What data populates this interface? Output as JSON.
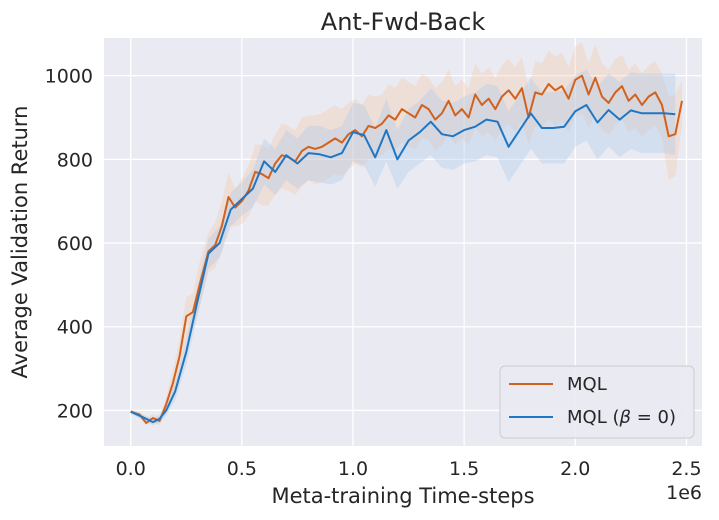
{
  "chart_data": {
    "type": "line",
    "title": "Ant-Fwd-Back",
    "xlabel": "Meta-training Time-steps",
    "ylabel": "Average Validation Return",
    "x_scale_label": "1e6",
    "xlim": [
      -0.12,
      2.57
    ],
    "ylim": [
      115,
      1090
    ],
    "xticks": [
      0.0,
      0.5,
      1.0,
      1.5,
      2.0,
      2.5
    ],
    "xtick_labels": [
      "0.0",
      "0.5",
      "1.0",
      "1.5",
      "2.0",
      "2.5"
    ],
    "yticks": [
      200,
      400,
      600,
      800,
      1000
    ],
    "ytick_labels": [
      "200",
      "400",
      "600",
      "800",
      "1000"
    ],
    "grid": true,
    "legend_position": "lower-right",
    "series": [
      {
        "name": "MQL",
        "legend_label": "MQL",
        "color": "#d2611c",
        "band_color": "#f6c8a8",
        "x": [
          0.0,
          0.04,
          0.07,
          0.1,
          0.13,
          0.16,
          0.19,
          0.22,
          0.25,
          0.28,
          0.31,
          0.35,
          0.38,
          0.41,
          0.44,
          0.47,
          0.5,
          0.53,
          0.56,
          0.59,
          0.62,
          0.65,
          0.68,
          0.71,
          0.74,
          0.77,
          0.8,
          0.83,
          0.86,
          0.89,
          0.92,
          0.95,
          0.98,
          1.01,
          1.04,
          1.07,
          1.1,
          1.13,
          1.16,
          1.19,
          1.22,
          1.25,
          1.28,
          1.31,
          1.34,
          1.37,
          1.4,
          1.43,
          1.46,
          1.49,
          1.52,
          1.55,
          1.58,
          1.61,
          1.64,
          1.67,
          1.7,
          1.73,
          1.76,
          1.79,
          1.82,
          1.85,
          1.88,
          1.91,
          1.94,
          1.97,
          2.0,
          2.03,
          2.06,
          2.09,
          2.12,
          2.15,
          2.18,
          2.21,
          2.24,
          2.27,
          2.3,
          2.33,
          2.36,
          2.39,
          2.42,
          2.45,
          2.48
        ],
        "values": [
          197,
          190,
          170,
          182,
          175,
          215,
          265,
          330,
          425,
          435,
          500,
          580,
          595,
          640,
          710,
          685,
          700,
          725,
          770,
          765,
          755,
          790,
          810,
          805,
          795,
          820,
          830,
          825,
          830,
          840,
          850,
          840,
          860,
          870,
          855,
          880,
          875,
          885,
          905,
          895,
          920,
          910,
          900,
          930,
          920,
          895,
          910,
          940,
          905,
          920,
          900,
          955,
          930,
          945,
          920,
          950,
          965,
          945,
          970,
          900,
          960,
          955,
          980,
          965,
          975,
          945,
          990,
          1000,
          955,
          995,
          950,
          935,
          960,
          975,
          940,
          955,
          930,
          950,
          960,
          930,
          855,
          860,
          940
        ],
        "lower": [
          192,
          182,
          165,
          170,
          165,
          195,
          235,
          290,
          370,
          390,
          445,
          530,
          540,
          580,
          640,
          640,
          645,
          665,
          700,
          690,
          690,
          715,
          730,
          725,
          715,
          735,
          750,
          740,
          745,
          755,
          765,
          760,
          775,
          790,
          780,
          800,
          800,
          810,
          825,
          820,
          840,
          830,
          825,
          850,
          845,
          820,
          835,
          860,
          835,
          850,
          835,
          875,
          855,
          865,
          845,
          870,
          885,
          865,
          890,
          835,
          880,
          875,
          895,
          880,
          890,
          865,
          905,
          910,
          875,
          905,
          870,
          860,
          880,
          895,
          865,
          875,
          855,
          870,
          880,
          850,
          750,
          760,
          880
        ],
        "upper": [
          202,
          197,
          180,
          192,
          185,
          232,
          295,
          370,
          470,
          480,
          555,
          625,
          650,
          700,
          770,
          730,
          755,
          785,
          835,
          835,
          825,
          860,
          885,
          880,
          870,
          900,
          905,
          905,
          910,
          920,
          930,
          920,
          935,
          945,
          930,
          955,
          950,
          955,
          980,
          970,
          995,
          985,
          975,
          1005,
          995,
          970,
          985,
          1015,
          975,
          990,
          970,
          1030,
          1005,
          1020,
          995,
          1025,
          1040,
          1020,
          1045,
          970,
          1035,
          1030,
          1060,
          1045,
          1055,
          1020,
          1070,
          1080,
          1030,
          1075,
          1030,
          1015,
          1040,
          1050,
          1015,
          1030,
          1005,
          1025,
          1035,
          1005,
          950,
          955,
          990
        ]
      },
      {
        "name": "MQL (beta=0)",
        "legend_label": "MQL (",
        "legend_beta": "β",
        "legend_suffix": " = 0)",
        "color": "#1f77c4",
        "band_color": "#a9c8eb",
        "x": [
          0.0,
          0.05,
          0.1,
          0.13,
          0.16,
          0.2,
          0.25,
          0.3,
          0.35,
          0.4,
          0.45,
          0.5,
          0.55,
          0.6,
          0.65,
          0.7,
          0.75,
          0.8,
          0.85,
          0.9,
          0.95,
          1.0,
          1.05,
          1.1,
          1.15,
          1.2,
          1.25,
          1.3,
          1.35,
          1.4,
          1.45,
          1.5,
          1.55,
          1.6,
          1.65,
          1.7,
          1.75,
          1.8,
          1.85,
          1.9,
          1.95,
          2.0,
          2.05,
          2.1,
          2.15,
          2.2,
          2.25,
          2.3,
          2.35,
          2.4,
          2.45
        ],
        "values": [
          197,
          185,
          172,
          180,
          200,
          245,
          340,
          460,
          575,
          600,
          680,
          705,
          730,
          795,
          770,
          810,
          790,
          815,
          812,
          805,
          815,
          865,
          858,
          805,
          870,
          800,
          845,
          865,
          890,
          860,
          855,
          870,
          878,
          895,
          890,
          830,
          870,
          910,
          875,
          875,
          878,
          915,
          930,
          888,
          918,
          895,
          917,
          910,
          910,
          910,
          908
        ],
        "lower": [
          192,
          178,
          165,
          170,
          188,
          225,
          310,
          425,
          540,
          565,
          640,
          665,
          685,
          740,
          715,
          750,
          730,
          750,
          745,
          740,
          750,
          795,
          785,
          735,
          795,
          730,
          770,
          790,
          810,
          780,
          775,
          790,
          795,
          810,
          805,
          745,
          785,
          825,
          790,
          790,
          790,
          830,
          845,
          800,
          830,
          805,
          825,
          815,
          815,
          815,
          810
        ],
        "upper": [
          202,
          192,
          180,
          190,
          212,
          265,
          370,
          495,
          610,
          640,
          720,
          745,
          775,
          850,
          825,
          870,
          850,
          880,
          880,
          870,
          880,
          935,
          930,
          875,
          945,
          870,
          920,
          940,
          970,
          940,
          935,
          950,
          960,
          980,
          975,
          915,
          955,
          995,
          960,
          960,
          965,
          1000,
          1015,
          975,
          1005,
          985,
          1008,
          1005,
          1005,
          1005,
          1005
        ]
      }
    ]
  }
}
